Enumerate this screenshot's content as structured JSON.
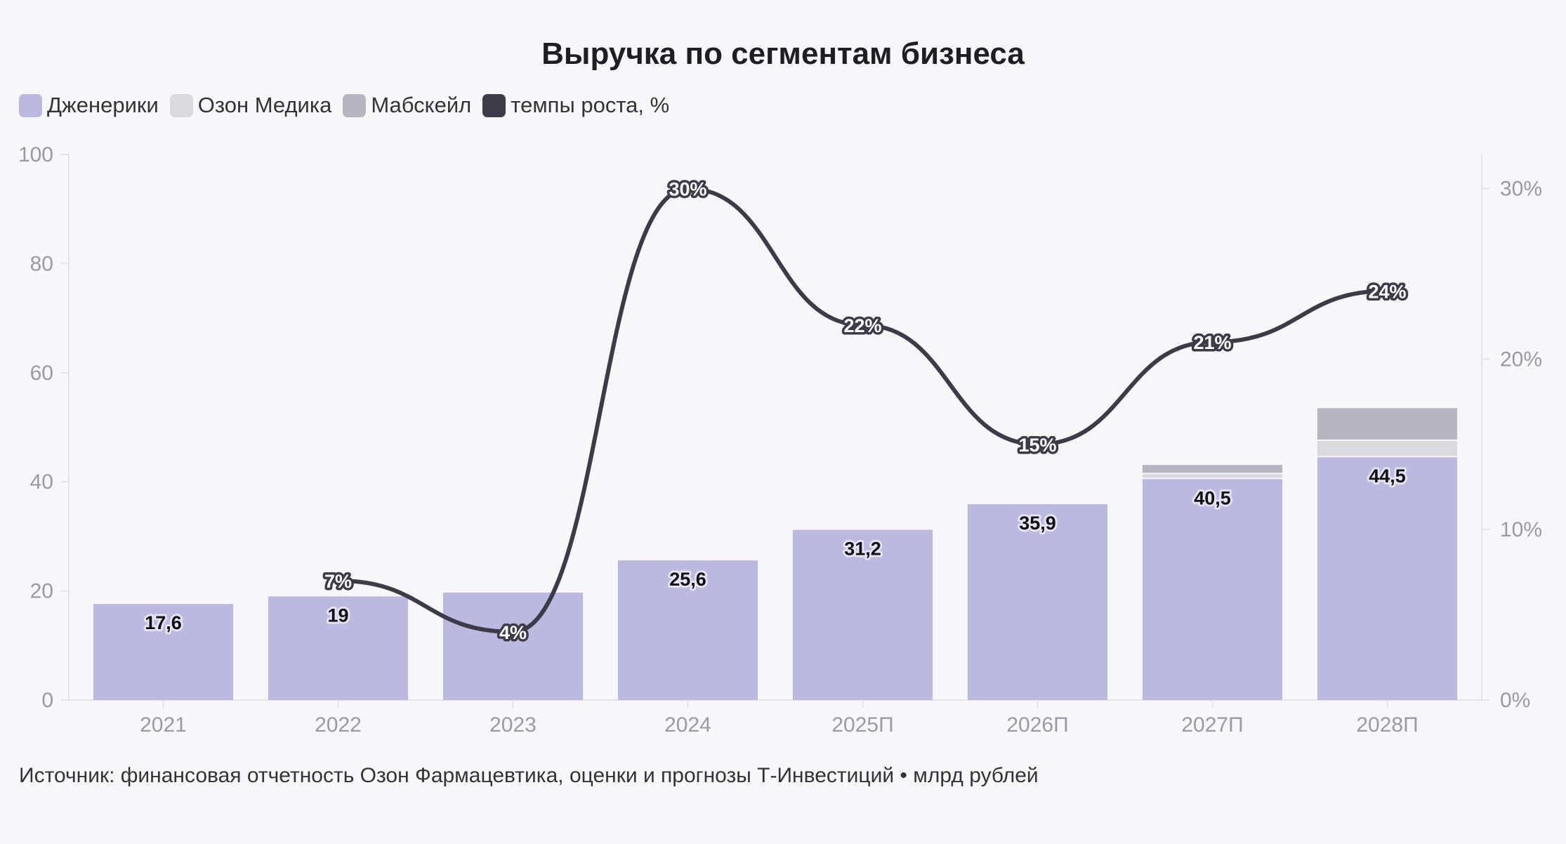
{
  "chart_data": {
    "type": "bar",
    "title": "Выручка по сегментам бизнеса",
    "categories": [
      "2021",
      "2022",
      "2023",
      "2024",
      "2025П",
      "2026П",
      "2027П",
      "2028П"
    ],
    "series": [
      {
        "name": "Дженерики",
        "kind": "bar",
        "axis": "left",
        "color": "#bcb9e1",
        "values": [
          17.6,
          19,
          19.7,
          25.6,
          31.2,
          35.9,
          40.5,
          44.5
        ],
        "labels": [
          "17,6",
          "19",
          "",
          "25,6",
          "31,2",
          "35,9",
          "40,5",
          "44,5"
        ]
      },
      {
        "name": "Озон Медика",
        "kind": "bar",
        "axis": "left",
        "color": "#dad9de",
        "values": [
          0,
          0,
          0,
          0,
          0,
          0,
          0.9,
          3
        ]
      },
      {
        "name": "Мабскейл",
        "kind": "bar",
        "axis": "left",
        "color": "#b7b5c0",
        "values": [
          0,
          0,
          0,
          0,
          0,
          0,
          1.7,
          6
        ]
      },
      {
        "name": "темпы роста, %",
        "kind": "line",
        "axis": "right",
        "color": "#3d3b48",
        "values": [
          null,
          7,
          4,
          30,
          22,
          15,
          21,
          24
        ],
        "labels": [
          null,
          "7%",
          "4%",
          "30%",
          "22%",
          "15%",
          "21%",
          "24%"
        ]
      }
    ],
    "y_left": {
      "ylim": [
        0,
        100
      ],
      "ticks": [
        "0",
        "20",
        "40",
        "60",
        "80",
        "100"
      ]
    },
    "y_right": {
      "ylim": [
        0,
        32
      ],
      "ticks": [
        "0%",
        "10%",
        "20%",
        "30%"
      ]
    },
    "legend": "top-left",
    "grid": false
  },
  "source_text": "Источник: финансовая отчетность Озон Фармацевтика, оценки и прогнозы Т-Инвестиций • млрд рублей"
}
